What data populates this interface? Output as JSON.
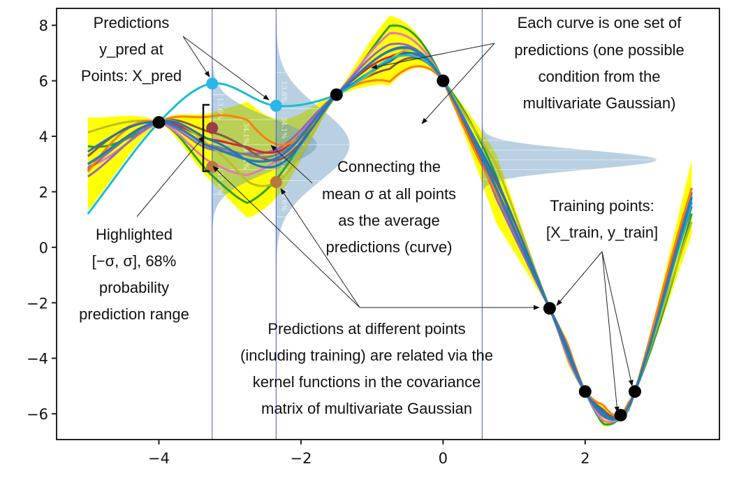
{
  "chart_data": {
    "type": "line",
    "title": "",
    "xlabel": "",
    "ylabel": "",
    "xlim": [
      -5.44,
      3.89
    ],
    "ylim": [
      -6.93,
      8.61
    ],
    "grid": false,
    "xticks": [
      -4,
      -2,
      0,
      2
    ],
    "xtick_labels": [
      "−4",
      "−2",
      "0",
      "2"
    ],
    "yticks": [
      8,
      6,
      4,
      2,
      0,
      -2,
      -4,
      -6
    ],
    "ytick_labels": [
      "8",
      "6",
      "4",
      "2",
      "0",
      "−2",
      "−4",
      "−6"
    ],
    "x_range": [
      -5,
      3.5
    ],
    "mean_curve": {
      "x": [
        -5,
        -4,
        -3.25,
        -2.35,
        -1.5,
        -0.6,
        0,
        1.5,
        2,
        2.4,
        2.7,
        3.5
      ],
      "y": [
        3.0,
        4.5,
        3.6,
        3.2,
        5.5,
        7.2,
        6.0,
        -2.2,
        -5.2,
        -6.2,
        -5.2,
        1.8
      ]
    },
    "highlight_sample": {
      "color": "#17becf",
      "x": [
        -5,
        -4,
        -3.25,
        -2.35,
        -1.5,
        -0.6,
        0,
        1.5,
        2,
        2.4,
        2.7,
        3.5
      ],
      "y": [
        1.2,
        4.5,
        5.9,
        5.1,
        5.5,
        6.9,
        6.0,
        -2.2,
        -5.2,
        -6.2,
        -5.2,
        1.6
      ]
    },
    "sample_colors": [
      "#2ca02c",
      "#e377c2",
      "#9467bd",
      "#d62728",
      "#8c564b",
      "#7f7f7f",
      "#bcbd22",
      "#ff7f0e",
      "#1f77b4"
    ],
    "band_color": "#ffff00",
    "training_points": {
      "x": [
        -4,
        -1.5,
        0,
        1.5,
        2,
        2.5,
        2.7
      ],
      "y": [
        4.5,
        5.5,
        6.0,
        -2.2,
        -5.2,
        -6.05,
        -5.2
      ],
      "color": "#000000"
    },
    "prediction_points": [
      {
        "x": -3.25,
        "y": 5.9,
        "color": "#29b6e8"
      },
      {
        "x": -2.35,
        "y": 5.1,
        "color": "#29b6e8"
      },
      {
        "x": -3.25,
        "y": 4.3,
        "color": "#9c3d4a"
      },
      {
        "x": -3.25,
        "y": 2.9,
        "color": "#b87840"
      },
      {
        "x": -2.35,
        "y": 2.35,
        "color": "#b87840"
      }
    ],
    "vertical_lines_x": [
      -3.25,
      -2.35,
      0.55
    ],
    "gaussians": [
      {
        "x": -3.25,
        "mean": 3.7,
        "sigma": 0.9
      },
      {
        "x": -2.35,
        "mean": 3.7,
        "sigma": 1.3
      },
      {
        "x": 0.55,
        "mean": 3.15,
        "sigma": 0.35
      }
    ],
    "gaussian_labels": [
      "13.6%",
      "34.1%",
      "34.1%",
      "13.6%"
    ],
    "gaussian_color": "#6496be"
  },
  "annotations": {
    "predictions": [
      "Predictions",
      "y_pred at",
      "Points: X_pred"
    ],
    "each_curve": [
      "Each curve is one set of",
      "predictions (one possible",
      "condition from the",
      "multivariate Gaussian)"
    ],
    "connecting": [
      "Connecting the",
      "mean σ at all points",
      "as the average",
      "predictions (curve)"
    ],
    "training": [
      "Training points:",
      "[X_train, y_train]"
    ],
    "highlighted": [
      "Highlighted",
      "[−σ, σ], 68%",
      "probability",
      "prediction range"
    ],
    "related": [
      "Predictions at different points",
      "(including training) are related via the",
      "kernel functions in the covariance",
      "matrix of multivariate Gaussian"
    ]
  }
}
